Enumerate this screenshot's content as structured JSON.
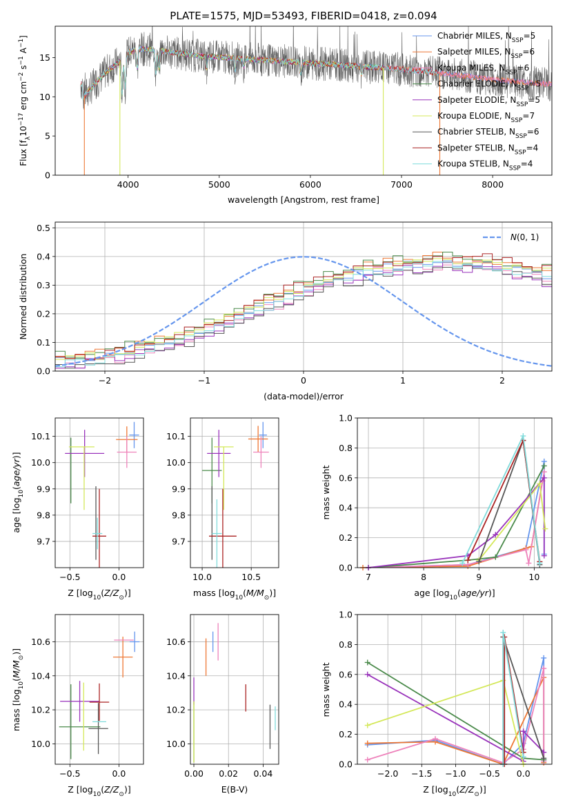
{
  "figure_title": "PLATE=1575, MJD=53493, FIBERID=0418, z=0.094",
  "colors": {
    "Chabrier MILES": "#6495ED",
    "Salpeter MILES": "#EE7733",
    "Kroupa MILES": "#EE82BB",
    "Chabrier ELODIE": "#4A8A4A",
    "Salpeter ELODIE": "#9933BB",
    "Kroupa ELODIE": "#D4E85A",
    "Chabrier STELIB": "#555555",
    "Salpeter STELIB": "#AA2222",
    "Kroupa STELIB": "#7FDBDB",
    "normal_curve": "#6495ED"
  },
  "chart_data": [
    {
      "id": "spectrum",
      "type": "line",
      "xlabel": "wavelength [Angstrom, rest frame]",
      "ylabel": "Flux [f",
      "xlim": [
        3200,
        8650
      ],
      "ylim": [
        0,
        19
      ],
      "xticks": [
        4000,
        5000,
        6000,
        7000,
        8000
      ],
      "yticks": [
        0,
        5,
        10,
        15
      ],
      "legend_position": "right",
      "series": [
        {
          "key": "Chabrier MILES",
          "name": "Chabrier MILES, N",
          "nssp": "=5"
        },
        {
          "key": "Salpeter MILES",
          "name": "Salpeter MILES, N",
          "nssp": "=6"
        },
        {
          "key": "Kroupa MILES",
          "name": "Kroupa MILES, N",
          "nssp": "=6"
        },
        {
          "key": "Chabrier ELODIE",
          "name": "Chabrier ELODIE, N",
          "nssp": "=5"
        },
        {
          "key": "Salpeter ELODIE",
          "name": "Salpeter ELODIE, N",
          "nssp": "=5"
        },
        {
          "key": "Kroupa ELODIE",
          "name": "Kroupa ELODIE, N",
          "nssp": "=7"
        },
        {
          "key": "Chabrier STELIB",
          "name": "Chabrier STELIB, N",
          "nssp": "=6"
        },
        {
          "key": "Salpeter STELIB",
          "name": "Salpeter STELIB, N",
          "nssp": "=4"
        },
        {
          "key": "Kroupa STELIB",
          "name": "Kroupa STELIB, N",
          "nssp": "=4"
        }
      ],
      "continuum": {
        "x": [
          3500,
          3600,
          3700,
          3800,
          3900,
          4000,
          4100,
          4300,
          4500,
          4800,
          5200,
          5600,
          6000,
          6400,
          6800,
          7200,
          7600,
          8000,
          8400,
          8650
        ],
        "y": [
          9.8,
          11.2,
          12.5,
          13.6,
          14.4,
          15.6,
          16.1,
          16.0,
          15.6,
          15.2,
          14.9,
          14.6,
          14.3,
          14.0,
          13.7,
          13.3,
          12.8,
          12.2,
          11.8,
          11.6
        ]
      },
      "absorption_features": [
        {
          "x": 3934,
          "depth": 4.5
        },
        {
          "x": 3968,
          "depth": 4.0
        },
        {
          "x": 4101,
          "depth": 2.5
        },
        {
          "x": 4305,
          "depth": 3.0
        },
        {
          "x": 4340,
          "depth": 2.5
        },
        {
          "x": 4861,
          "depth": 1.5
        },
        {
          "x": 5175,
          "depth": 1.5
        },
        {
          "x": 5270,
          "depth": 1.0
        },
        {
          "x": 5893,
          "depth": 1.5
        },
        {
          "x": 6563,
          "depth": 1.0
        }
      ],
      "spikes": [
        {
          "x": 3520,
          "y": 0
        },
        {
          "x": 3910,
          "y": 0
        },
        {
          "x": 6800,
          "y": 0
        },
        {
          "x": 7420,
          "y": 0
        }
      ]
    },
    {
      "id": "residual_hist",
      "type": "histogram",
      "xlabel": "(data-model)/error",
      "ylabel": "Normed distribution",
      "xlim": [
        -2.5,
        2.5
      ],
      "ylim": [
        0,
        0.52
      ],
      "xticks": [
        -2,
        -1,
        0,
        1,
        2
      ],
      "yticks": [
        0.0,
        0.1,
        0.2,
        0.3,
        0.4,
        0.5
      ],
      "legend_label": "N(0,1)",
      "bin_width": 0.1,
      "bin_start": -2.5,
      "envelope": [
        0.035,
        0.036,
        0.038,
        0.042,
        0.047,
        0.052,
        0.058,
        0.065,
        0.073,
        0.081,
        0.09,
        0.1,
        0.111,
        0.123,
        0.135,
        0.148,
        0.162,
        0.176,
        0.19,
        0.205,
        0.219,
        0.234,
        0.248,
        0.262,
        0.276,
        0.289,
        0.301,
        0.313,
        0.324,
        0.334,
        0.343,
        0.351,
        0.358,
        0.364,
        0.369,
        0.373,
        0.376,
        0.378,
        0.379,
        0.379,
        0.378,
        0.377,
        0.375,
        0.372,
        0.368,
        0.363,
        0.357,
        0.35,
        0.343,
        0.335,
        0.326,
        0.317,
        0.307,
        0.296,
        0.285,
        0.273,
        0.261,
        0.249,
        0.236,
        0.223,
        0.21,
        0.197,
        0.184,
        0.171,
        0.158,
        0.146,
        0.134,
        0.122,
        0.111,
        0.101,
        0.091,
        0.082,
        0.073,
        0.066,
        0.059,
        0.052,
        0.047,
        0.042,
        0.038,
        0.035,
        0.032,
        0.03,
        0.028,
        0.027,
        0.026,
        0.025,
        0.025,
        0.025,
        0.025,
        0.025
      ],
      "series_offsets": [
        0.0,
        0.015,
        -0.012,
        0.02,
        -0.018,
        0.01,
        -0.022,
        0.018,
        -0.008
      ]
    },
    {
      "id": "age_vs_Z",
      "type": "errorbar",
      "xlabel": "Z [log",
      "ylabel": "age  [log",
      "xlim": [
        -0.65,
        0.25
      ],
      "ylim": [
        9.6,
        10.17
      ],
      "xticks": [
        -0.5,
        0.0
      ],
      "xticklabels": [
        "−0.5",
        "0.0"
      ],
      "yticks": [
        9.7,
        9.8,
        9.9,
        10.0,
        10.1
      ],
      "points": [
        {
          "key": "Chabrier MILES",
          "x": 0.155,
          "y": 10.105,
          "xerr": 0.05,
          "yerr": 0.05
        },
        {
          "key": "Salpeter MILES",
          "x": 0.08,
          "y": 10.088,
          "xerr": 0.11,
          "yerr": 0.05
        },
        {
          "key": "Kroupa MILES",
          "x": 0.08,
          "y": 10.04,
          "xerr": 0.1,
          "yerr": 0.06
        },
        {
          "key": "Chabrier ELODIE",
          "x": -0.49,
          "y": 9.97,
          "xerr": 0.0,
          "yerr": 0.125
        },
        {
          "key": "Salpeter ELODIE",
          "x": -0.35,
          "y": 10.035,
          "xerr": 0.2,
          "yerr": 0.09
        },
        {
          "key": "Kroupa ELODIE",
          "x": -0.355,
          "y": 9.94,
          "xerr": 0.0,
          "yerr": 0.12
        },
        {
          "key": "Kroupa ELODIE",
          "x": -0.38,
          "y": 10.06,
          "xerr": 0.13,
          "yerr": 0.0
        },
        {
          "key": "Chabrier STELIB",
          "x": -0.235,
          "y": 9.77,
          "xerr": 0.0,
          "yerr": 0.14
        },
        {
          "key": "Salpeter STELIB",
          "x": -0.2,
          "y": 9.72,
          "xerr": 0.07,
          "yerr": 0.18
        },
        {
          "key": "Kroupa STELIB",
          "x": -0.22,
          "y": 9.73,
          "xerr": 0.05,
          "yerr": 0.06
        }
      ]
    },
    {
      "id": "age_vs_mass",
      "type": "errorbar",
      "xlabel": "mass [log",
      "ylabel": "",
      "xlim": [
        9.88,
        10.78
      ],
      "ylim": [
        9.6,
        10.17
      ],
      "xticks": [
        10.0,
        10.5
      ],
      "xticklabels": [
        "10.0",
        "10.5"
      ],
      "yticks": [
        9.7,
        9.8,
        9.9,
        10.0,
        10.1
      ],
      "points": [
        {
          "key": "Chabrier MILES",
          "x": 10.62,
          "y": 10.105,
          "xerr": 0.04,
          "yerr": 0.05
        },
        {
          "key": "Salpeter MILES",
          "x": 10.57,
          "y": 10.09,
          "xerr": 0.1,
          "yerr": 0.05
        },
        {
          "key": "Kroupa MILES",
          "x": 10.6,
          "y": 10.04,
          "xerr": 0.08,
          "yerr": 0.06
        },
        {
          "key": "Chabrier ELODIE",
          "x": 10.1,
          "y": 9.97,
          "xerr": 0.1,
          "yerr": 0.125
        },
        {
          "key": "Salpeter ELODIE",
          "x": 10.17,
          "y": 10.035,
          "xerr": 0.12,
          "yerr": 0.09
        },
        {
          "key": "Kroupa ELODIE",
          "x": 10.22,
          "y": 10.06,
          "xerr": 0.1,
          "yerr": 0.0
        },
        {
          "key": "Kroupa ELODIE",
          "x": 10.22,
          "y": 9.94,
          "xerr": 0.0,
          "yerr": 0.12
        },
        {
          "key": "Chabrier STELIB",
          "x": 10.1,
          "y": 9.77,
          "xerr": 0.0,
          "yerr": 0.14
        },
        {
          "key": "Salpeter STELIB",
          "x": 10.21,
          "y": 9.72,
          "xerr": 0.14,
          "yerr": 0.18
        },
        {
          "key": "Kroupa STELIB",
          "x": 10.15,
          "y": 9.73,
          "xerr": 0.05,
          "yerr": 0.13
        }
      ]
    },
    {
      "id": "massweight_vs_age",
      "type": "line",
      "xlabel": "age  [log",
      "ylabel": "mass weight",
      "xlim": [
        6.8,
        10.32
      ],
      "ylim": [
        0,
        1.0
      ],
      "xticks": [
        7,
        8,
        9,
        10
      ],
      "yticks": [
        0.0,
        0.2,
        0.4,
        0.6,
        0.8,
        1.0
      ],
      "series": [
        {
          "key": "Chabrier MILES",
          "x": [
            7.0,
            8.8,
            9.85,
            10.18,
            10.18
          ],
          "y": [
            0.0,
            0.02,
            0.13,
            0.71,
            0.09
          ]
        },
        {
          "key": "Salpeter MILES",
          "x": [
            6.9,
            8.8,
            9.85,
            9.95,
            10.15
          ],
          "y": [
            0.0,
            0.01,
            0.13,
            0.14,
            0.58
          ]
        },
        {
          "key": "Kroupa MILES",
          "x": [
            7.0,
            8.8,
            9.85,
            9.9,
            10.18
          ],
          "y": [
            0.0,
            0.02,
            0.12,
            0.03,
            0.64
          ]
        },
        {
          "key": "Chabrier ELODIE",
          "x": [
            7.0,
            8.8,
            9.3,
            10.18
          ],
          "y": [
            0.0,
            0.05,
            0.07,
            0.68
          ]
        },
        {
          "key": "Salpeter ELODIE",
          "x": [
            7.0,
            8.8,
            9.3,
            10.18,
            10.18
          ],
          "y": [
            0.0,
            0.08,
            0.22,
            0.6,
            0.08
          ]
        },
        {
          "key": "Kroupa ELODIE",
          "x": [
            9.0,
            10.1,
            10.2
          ],
          "y": [
            0.05,
            0.56,
            0.26
          ]
        },
        {
          "key": "Chabrier STELIB",
          "x": [
            9.0,
            9.8,
            10.1
          ],
          "y": [
            0.04,
            0.85,
            0.02
          ]
        },
        {
          "key": "Salpeter STELIB",
          "x": [
            8.8,
            9.8,
            10.1
          ],
          "y": [
            0.05,
            0.85,
            0.04
          ]
        },
        {
          "key": "Kroupa STELIB",
          "x": [
            8.7,
            9.8,
            10.1
          ],
          "y": [
            0.03,
            0.88,
            0.03
          ]
        }
      ]
    },
    {
      "id": "mass_vs_Z",
      "type": "errorbar",
      "xlabel": "Z [log",
      "ylabel": "mass [log",
      "xlim": [
        -0.65,
        0.25
      ],
      "ylim": [
        9.88,
        10.76
      ],
      "xticks": [
        -0.5,
        0.0
      ],
      "xticklabels": [
        "−0.5",
        "0.0"
      ],
      "yticks": [
        10.0,
        10.2,
        10.4,
        10.6
      ],
      "points": [
        {
          "key": "Chabrier MILES",
          "x": 0.16,
          "y": 10.6,
          "xerr": 0.05,
          "yerr": 0.06
        },
        {
          "key": "Salpeter MILES",
          "x": 0.04,
          "y": 10.51,
          "xerr": 0.1,
          "yerr": 0.12
        },
        {
          "key": "Kroupa MILES",
          "x": 0.05,
          "y": 10.61,
          "xerr": 0.1,
          "yerr": 0.0
        },
        {
          "key": "Chabrier ELODIE",
          "x": -0.4,
          "y": 10.1,
          "xerr": 0.21,
          "yerr": 0.0
        },
        {
          "key": "Chabrier ELODIE",
          "x": -0.49,
          "y": 10.13,
          "xerr": 0.0,
          "yerr": 0.22
        },
        {
          "key": "Salpeter ELODIE",
          "x": -0.4,
          "y": 10.25,
          "xerr": 0.2,
          "yerr": 0.12
        },
        {
          "key": "Kroupa ELODIE",
          "x": -0.36,
          "y": 10.16,
          "xerr": 0.0,
          "yerr": 0.2
        },
        {
          "key": "Chabrier STELIB",
          "x": -0.21,
          "y": 10.09,
          "xerr": 0.1,
          "yerr": 0.15
        },
        {
          "key": "Salpeter STELIB",
          "x": -0.2,
          "y": 10.245,
          "xerr": 0.1,
          "yerr": 0.11
        },
        {
          "key": "Kroupa STELIB",
          "x": -0.2,
          "y": 10.13,
          "xerr": 0.07,
          "yerr": 0.0
        }
      ]
    },
    {
      "id": "mass_vs_ebv",
      "type": "errorbar",
      "xlabel": "E(B-V)",
      "ylabel": "",
      "xlim": [
        -0.002,
        0.049
      ],
      "ylim": [
        9.88,
        10.76
      ],
      "xticks": [
        0.0,
        0.02,
        0.04
      ],
      "xticklabels": [
        "0.00",
        "0.02",
        "0.04"
      ],
      "yticks": [
        10.0,
        10.2,
        10.4,
        10.6
      ],
      "points": [
        {
          "key": "Chabrier MILES",
          "x": 0.011,
          "y": 10.6,
          "xerr": 0.0,
          "yerr": 0.06
        },
        {
          "key": "Salpeter MILES",
          "x": 0.007,
          "y": 10.51,
          "xerr": 0.0,
          "yerr": 0.11
        },
        {
          "key": "Kroupa MILES",
          "x": 0.014,
          "y": 10.6,
          "xerr": 0.0,
          "yerr": 0.11
        },
        {
          "key": "Chabrier ELODIE",
          "x": 0.0,
          "y": 10.07,
          "xerr": 0.0,
          "yerr": 0.18
        },
        {
          "key": "Salpeter ELODIE",
          "x": 0.0,
          "y": 10.31,
          "xerr": 0.0,
          "yerr": 0.08
        },
        {
          "key": "Kroupa ELODIE",
          "x": 0.0,
          "y": 10.07,
          "xerr": 0.0,
          "yerr": 0.18
        },
        {
          "key": "Chabrier STELIB",
          "x": 0.044,
          "y": 10.1,
          "xerr": 0.0,
          "yerr": 0.13
        },
        {
          "key": "Salpeter STELIB",
          "x": 0.03,
          "y": 10.27,
          "xerr": 0.0,
          "yerr": 0.08
        },
        {
          "key": "Kroupa STELIB",
          "x": 0.047,
          "y": 10.15,
          "xerr": 0.0,
          "yerr": 0.07
        }
      ]
    },
    {
      "id": "massweight_vs_Z",
      "type": "line",
      "xlabel": "Z [log",
      "ylabel": "mass weight",
      "xlim": [
        -2.45,
        0.42
      ],
      "ylim": [
        0,
        1.0
      ],
      "xticks": [
        -2.0,
        -1.5,
        -1.0,
        -0.5,
        0.0
      ],
      "xticklabels": [
        "−2.0",
        "−1.5",
        "−1.0",
        "−0.5",
        "0.0"
      ],
      "yticks": [
        0.0,
        0.2,
        0.4,
        0.6,
        0.8,
        1.0
      ],
      "series": [
        {
          "key": "Chabrier MILES",
          "x": [
            -2.3,
            -1.3,
            -0.3,
            0.0,
            0.3,
            0.3
          ],
          "y": [
            0.13,
            0.16,
            0.0,
            0.14,
            0.71,
            0.03
          ]
        },
        {
          "key": "Salpeter MILES",
          "x": [
            -2.3,
            -1.3,
            -0.3,
            0.3,
            0.3
          ],
          "y": [
            0.14,
            0.15,
            0.0,
            0.58,
            0.01
          ]
        },
        {
          "key": "Kroupa MILES",
          "x": [
            -2.3,
            -1.3,
            -0.3,
            0.0,
            0.3,
            0.3
          ],
          "y": [
            0.03,
            0.17,
            0.01,
            0.1,
            0.64,
            0.02
          ]
        },
        {
          "key": "Chabrier ELODIE",
          "x": [
            -2.3,
            0.0,
            0.3
          ],
          "y": [
            0.68,
            0.04,
            0.03
          ]
        },
        {
          "key": "Salpeter ELODIE",
          "x": [
            -2.3,
            0.0,
            0.0,
            0.3
          ],
          "y": [
            0.6,
            0.02,
            0.22,
            0.08
          ]
        },
        {
          "key": "Kroupa ELODIE",
          "x": [
            -2.3,
            -0.3,
            0.0
          ],
          "y": [
            0.26,
            0.56,
            0.0
          ]
        },
        {
          "key": "Chabrier STELIB",
          "x": [
            -0.3,
            -0.3,
            0.3
          ],
          "y": [
            0.0,
            0.85,
            0.04
          ]
        },
        {
          "key": "Salpeter STELIB",
          "x": [
            -0.28,
            -0.28,
            0.0
          ],
          "y": [
            0.0,
            0.85,
            0.08
          ]
        },
        {
          "key": "Kroupa STELIB",
          "x": [
            -0.3,
            -0.3,
            0.0
          ],
          "y": [
            0.0,
            0.88,
            0.05
          ]
        }
      ]
    }
  ]
}
